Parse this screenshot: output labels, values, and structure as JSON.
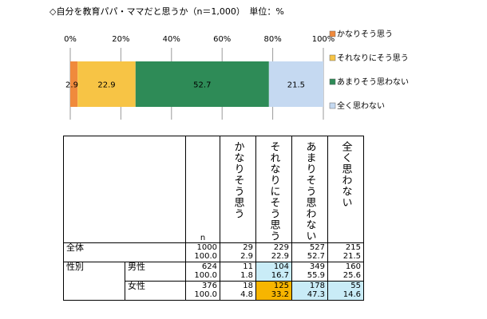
{
  "title": "◇自分を教育パパ・ママだと思うか（n＝1,000）　単位：%",
  "chart_data": {
    "type": "bar",
    "orientation": "horizontal-stacked-100",
    "categories": [
      ""
    ],
    "series": [
      {
        "name": "かなりそう思う",
        "values": [
          2.9
        ],
        "color": "#f08a3c"
      },
      {
        "name": "それなりにそう思う",
        "values": [
          22.9
        ],
        "color": "#f7c445"
      },
      {
        "name": "あまりそう思わない",
        "values": [
          52.7
        ],
        "color": "#2e8b57"
      },
      {
        "name": "全く思わない",
        "values": [
          21.5
        ],
        "color": "#c5d9f1"
      }
    ],
    "xlim": [
      0,
      100
    ],
    "xticks": [
      "0%",
      "20%",
      "40%",
      "60%",
      "80%",
      "100%"
    ],
    "grid": true,
    "legend": "right"
  },
  "table": {
    "n_label": "n",
    "columns": [
      "かなりそう思う",
      "それなりにそう思う",
      "あまりそう思わない",
      "全く思わない"
    ],
    "rows": [
      {
        "group": "全体",
        "label": "",
        "n": "1000",
        "n_pct": "100.0",
        "counts": [
          "29",
          "229",
          "527",
          "215"
        ],
        "pcts": [
          "2.9",
          "22.9",
          "52.7",
          "21.5"
        ]
      },
      {
        "group": "性別",
        "label": "男性",
        "n": "624",
        "n_pct": "100.0",
        "counts": [
          "11",
          "104",
          "349",
          "160"
        ],
        "pcts": [
          "1.8",
          "16.7",
          "55.9",
          "25.6"
        ]
      },
      {
        "group": "",
        "label": "女性",
        "n": "376",
        "n_pct": "100.0",
        "counts": [
          "18",
          "125",
          "178",
          "55"
        ],
        "pcts": [
          "4.8",
          "33.2",
          "47.3",
          "14.6"
        ]
      }
    ],
    "highlight_colors": {
      "high": "#f7b500",
      "mid": "#c9ecf7"
    }
  }
}
